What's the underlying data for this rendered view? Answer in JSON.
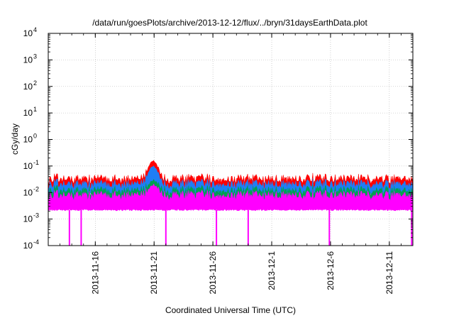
{
  "chart_data": {
    "type": "area",
    "title": "/data/run/goesPlots/archive/2013-12-12/flux/../bryn/31daysEarthData.plot",
    "xlabel": "Coordinated Universal Time (UTC)",
    "ylabel": "cGy/day",
    "x_range": [
      "2013-11-12",
      "2013-12-13"
    ],
    "x_ticks": [
      "2013-11-16",
      "2013-11-21",
      "2013-11-26",
      "2013-12-1",
      "2013-12-6",
      "2013-12-11"
    ],
    "y_scale": "log",
    "ylim": [
      0.0001,
      10000
    ],
    "y_ticks": [
      {
        "value": 0.0001,
        "label": "10",
        "exp": "-4"
      },
      {
        "value": 0.001,
        "label": "10",
        "exp": "-3"
      },
      {
        "value": 0.01,
        "label": "10",
        "exp": "-2"
      },
      {
        "value": 0.1,
        "label": "10",
        "exp": "-1"
      },
      {
        "value": 1,
        "label": "10",
        "exp": "0"
      },
      {
        "value": 10,
        "label": "10",
        "exp": "1"
      },
      {
        "value": 100,
        "label": "10",
        "exp": "2"
      },
      {
        "value": 1000,
        "label": "10",
        "exp": "3"
      },
      {
        "value": 10000,
        "label": "10",
        "exp": "4"
      }
    ],
    "grid": true,
    "series": [
      {
        "color": "#ff0000",
        "baseline": 0.033,
        "peak": {
          "date": "2013-11-20.9",
          "value": 0.16
        }
      },
      {
        "color": "#1e7ef5",
        "baseline": 0.021,
        "peak": {
          "date": "2013-11-20.9",
          "value": 0.1
        }
      },
      {
        "color": "#00a050",
        "baseline": 0.012,
        "peak": {
          "date": "2013-11-20.9",
          "value": 0.03
        }
      },
      {
        "color": "#ff00ff",
        "baseline": 0.008,
        "low": 0.0022,
        "peak": {
          "date": "2013-11-20.9",
          "value": 0.02
        }
      }
    ],
    "dropouts": [
      "2013-11-13.8",
      "2013-11-14.8",
      "2013-11-22.0",
      "2013-11-26.3",
      "2013-11-29.0",
      "2013-12-5.9",
      "2013-12-12.9"
    ]
  }
}
